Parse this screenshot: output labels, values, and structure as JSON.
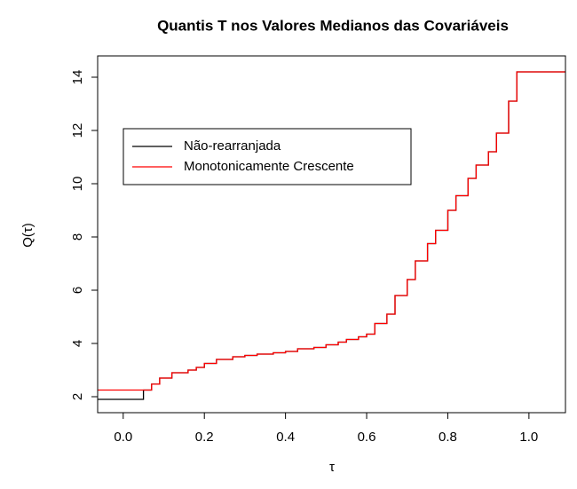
{
  "chart_data": {
    "type": "step",
    "title": "Quantis T nos Valores Medianos das Covariáveis",
    "x_label": "τ",
    "y_label": "Q(τ)",
    "xlim": [
      -0.063,
      1.09
    ],
    "ylim": [
      1.4,
      14.8
    ],
    "xticks": [
      {
        "value": 0,
        "label": "0.0"
      },
      0.2,
      0.4,
      0.6,
      0.8,
      {
        "value": 1,
        "label": "1.0"
      }
    ],
    "yticks": [
      2,
      4,
      6,
      8,
      10,
      12,
      14
    ],
    "legend": "top-left",
    "series": [
      {
        "name": "Não-rearranjada",
        "color": "#000000",
        "x": [
          -0.063,
          0.05,
          0.07,
          0.09,
          0.12,
          0.16,
          0.18,
          0.2,
          0.23,
          0.27,
          0.3,
          0.33,
          0.37,
          0.4,
          0.43,
          0.47,
          0.5,
          0.53,
          0.55,
          0.58,
          0.6,
          0.62,
          0.65,
          0.67,
          0.7,
          0.72,
          0.75,
          0.77,
          0.8,
          0.82,
          0.85,
          0.87,
          0.9,
          0.92,
          0.95,
          0.97
        ],
        "values": [
          1.9,
          2.25,
          2.47,
          2.7,
          2.9,
          3.0,
          3.1,
          3.25,
          3.4,
          3.5,
          3.55,
          3.6,
          3.65,
          3.7,
          3.8,
          3.85,
          3.95,
          4.05,
          4.15,
          4.25,
          4.35,
          4.75,
          5.1,
          5.8,
          6.4,
          7.1,
          7.75,
          8.25,
          9.0,
          9.55,
          10.2,
          10.7,
          11.2,
          11.9,
          13.1,
          14.2
        ]
      },
      {
        "name": "Monotonicamente Crescente",
        "color": "#ff0000",
        "x": [
          -0.063,
          0.07,
          0.09,
          0.12,
          0.16,
          0.18,
          0.2,
          0.23,
          0.27,
          0.3,
          0.33,
          0.37,
          0.4,
          0.43,
          0.47,
          0.5,
          0.53,
          0.55,
          0.58,
          0.6,
          0.62,
          0.65,
          0.67,
          0.7,
          0.72,
          0.75,
          0.77,
          0.8,
          0.82,
          0.85,
          0.87,
          0.9,
          0.92,
          0.95,
          0.97
        ],
        "values": [
          2.25,
          2.47,
          2.7,
          2.9,
          3.0,
          3.1,
          3.25,
          3.4,
          3.5,
          3.55,
          3.6,
          3.65,
          3.7,
          3.8,
          3.85,
          3.95,
          4.05,
          4.15,
          4.25,
          4.35,
          4.75,
          5.1,
          5.8,
          6.4,
          7.1,
          7.75,
          8.25,
          9.0,
          9.55,
          10.2,
          10.7,
          11.2,
          11.9,
          13.1,
          14.2
        ]
      }
    ]
  }
}
